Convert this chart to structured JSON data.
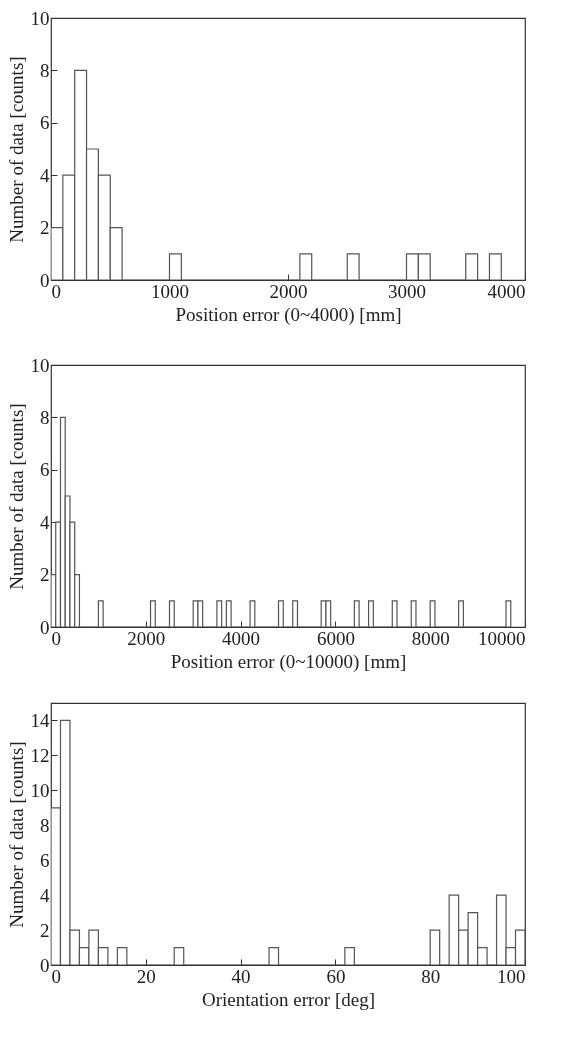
{
  "chart_data": [
    {
      "type": "histogram",
      "xlabel": "Position error (0~4000)  [mm]",
      "ylabel": "Number of data [counts]",
      "bins": [
        0,
        100,
        200,
        300,
        400,
        500,
        600,
        700,
        800,
        900,
        1000,
        1100,
        1200,
        1300,
        1400,
        1500,
        1600,
        1700,
        1800,
        1900,
        2000,
        2100,
        2200,
        2300,
        2400,
        2500,
        2600,
        2700,
        2800,
        2900,
        3000,
        3100,
        3200,
        3300,
        3400,
        3500,
        3600,
        3700,
        3800
      ],
      "values": [
        2,
        4,
        8,
        5,
        4,
        2,
        0,
        0,
        0,
        0,
        1,
        0,
        0,
        0,
        0,
        0,
        0,
        0,
        0,
        0,
        0,
        1,
        0,
        0,
        0,
        1,
        0,
        0,
        0,
        0,
        1,
        1,
        0,
        0,
        0,
        1,
        0,
        1
      ],
      "xlim": [
        0,
        4000
      ],
      "xticks": [
        0,
        1000,
        2000,
        3000,
        4000
      ],
      "ylim": [
        0,
        10
      ],
      "yticks": [
        0,
        2,
        4,
        6,
        8,
        10
      ]
    },
    {
      "type": "histogram",
      "xlabel": "Position error (0~10000) [mm]",
      "ylabel": "Number of data [counts]",
      "bins": [
        0,
        100,
        200,
        300,
        400,
        500,
        600,
        700,
        800,
        900,
        1000,
        1100,
        1200,
        1300,
        1400,
        1500,
        1600,
        1700,
        1800,
        1900,
        2000,
        2100,
        2200,
        2300,
        2400,
        2500,
        2600,
        2700,
        2800,
        2900,
        3000,
        3100,
        3200,
        3300,
        3400,
        3500,
        3600,
        3700,
        3800,
        3900,
        4000,
        4100,
        4200,
        4300,
        4400,
        4500,
        4600,
        4700,
        4800,
        4900,
        5000,
        5100,
        5200,
        5300,
        5400,
        5500,
        5600,
        5700,
        5800,
        5900,
        6000,
        6100,
        6200,
        6300,
        6400,
        6500,
        6600,
        6700,
        6800,
        6900,
        7000,
        7100,
        7200,
        7300,
        7400,
        7500,
        7600,
        7700,
        7800,
        7900,
        8000,
        8100,
        8200,
        8300,
        8400,
        8500,
        8600,
        8700,
        8800,
        8900,
        9000,
        9100,
        9200,
        9300,
        9400,
        9500,
        9600,
        9700
      ],
      "values": [
        2,
        4,
        8,
        5,
        4,
        2,
        0,
        0,
        0,
        0,
        1,
        0,
        0,
        0,
        0,
        0,
        0,
        0,
        0,
        0,
        0,
        1,
        0,
        0,
        0,
        1,
        0,
        0,
        0,
        0,
        1,
        1,
        0,
        0,
        0,
        1,
        0,
        1,
        0,
        0,
        0,
        0,
        1,
        0,
        0,
        0,
        0,
        0,
        1,
        0,
        0,
        1,
        0,
        0,
        0,
        0,
        0,
        1,
        1,
        0,
        0,
        0,
        0,
        0,
        1,
        0,
        0,
        1,
        0,
        0,
        0,
        0,
        1,
        0,
        0,
        0,
        1,
        0,
        0,
        0,
        1,
        0,
        0,
        0,
        0,
        0,
        1,
        0,
        0,
        0,
        0,
        0,
        0,
        0,
        0,
        0,
        1
      ],
      "xlim": [
        0,
        10000
      ],
      "xticks": [
        0,
        2000,
        4000,
        6000,
        8000,
        10000
      ],
      "ylim": [
        0,
        10
      ],
      "yticks": [
        0,
        2,
        4,
        6,
        8,
        10
      ]
    },
    {
      "type": "histogram",
      "xlabel": "Orientation error [deg]",
      "ylabel": "Number of data [counts]",
      "bins": [
        0,
        2,
        4,
        6,
        8,
        10,
        12,
        14,
        16,
        18,
        20,
        22,
        24,
        26,
        28,
        30,
        32,
        34,
        36,
        38,
        40,
        42,
        44,
        46,
        48,
        50,
        52,
        54,
        56,
        58,
        60,
        62,
        64,
        66,
        68,
        70,
        72,
        74,
        76,
        78,
        80,
        82,
        84,
        86,
        88,
        90,
        92,
        94,
        96,
        98,
        100
      ],
      "values": [
        9,
        14,
        2,
        1,
        2,
        1,
        0,
        1,
        0,
        0,
        0,
        0,
        0,
        1,
        0,
        0,
        0,
        0,
        0,
        0,
        0,
        0,
        0,
        1,
        0,
        0,
        0,
        0,
        0,
        0,
        0,
        1,
        0,
        0,
        0,
        0,
        0,
        0,
        0,
        0,
        2,
        0,
        4,
        2,
        3,
        1,
        0,
        4,
        1,
        2
      ],
      "xlim": [
        0,
        100
      ],
      "xticks": [
        0,
        20,
        40,
        60,
        80,
        100
      ],
      "ylim": [
        0,
        15
      ],
      "yticks": [
        0,
        2,
        4,
        6,
        8,
        10,
        12,
        14
      ]
    }
  ]
}
